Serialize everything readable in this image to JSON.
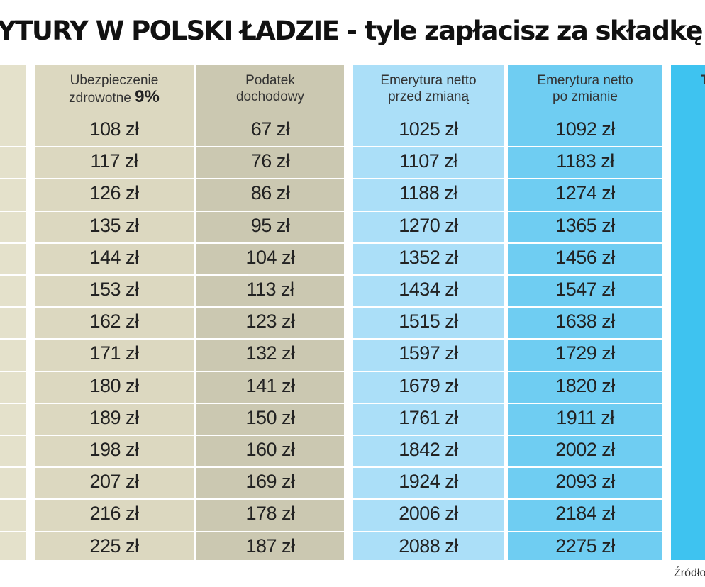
{
  "title": "YTURY W POLSKI ŁADZIE - tyle zapłacisz za składkę zdrow",
  "source": "Źródło",
  "chart_data": {
    "type": "table",
    "columns": [
      {
        "name": "col-partial-left",
        "header": "",
        "values": []
      },
      {
        "name": "col-ubezpieczenie",
        "header_line1": "Ubezpieczenie",
        "header_line2": "zdrowotne",
        "header_pct": "9%",
        "values": [
          "108 zł",
          "117 zł",
          "126 zł",
          "135 zł",
          "144 zł",
          "153 zł",
          "162 zł",
          "171 zł",
          "180 zł",
          "189 zł",
          "198 zł",
          "207 zł",
          "216 zł",
          "225 zł"
        ]
      },
      {
        "name": "col-podatek",
        "header_line1": "Podatek",
        "header_line2": "dochodowy",
        "values": [
          "67 zł",
          "76 zł",
          "86 zł",
          "95 zł",
          "104 zł",
          "113 zł",
          "123 zł",
          "132 zł",
          "141 zł",
          "150 zł",
          "160 zł",
          "169 zł",
          "178 zł",
          "187 zł"
        ]
      },
      {
        "name": "col-emerytura-przed",
        "header_line1": "Emerytura netto",
        "header_line2": "przed zmianą",
        "values": [
          "1025 zł",
          "1107 zł",
          "1188 zł",
          "1270 zł",
          "1352 zł",
          "1434 zł",
          "1515 zł",
          "1597 zł",
          "1679 zł",
          "1761 zł",
          "1842 zł",
          "1924 zł",
          "2006 zł",
          "2088 zł"
        ]
      },
      {
        "name": "col-emerytura-po",
        "header_line1": "Emerytura netto",
        "header_line2": "po zmianie",
        "values": [
          "1092 zł",
          "1183 zł",
          "1274 zł",
          "1365 zł",
          "1456 zł",
          "1547 zł",
          "1638 zł",
          "1729 zł",
          "1820 zł",
          "1911 zł",
          "2002 zł",
          "2093 zł",
          "2184 zł",
          "2275 zł"
        ]
      },
      {
        "name": "col-partial-right",
        "header_line1": "T",
        "values": []
      }
    ]
  },
  "colors": {
    "col_a": "#e4e1cb",
    "col_b": "#dcd8c0",
    "col_c": "#cbc8b1",
    "col_d": "#abdff8",
    "col_e": "#6fcdf2",
    "col_f": "#3ec3f0"
  }
}
